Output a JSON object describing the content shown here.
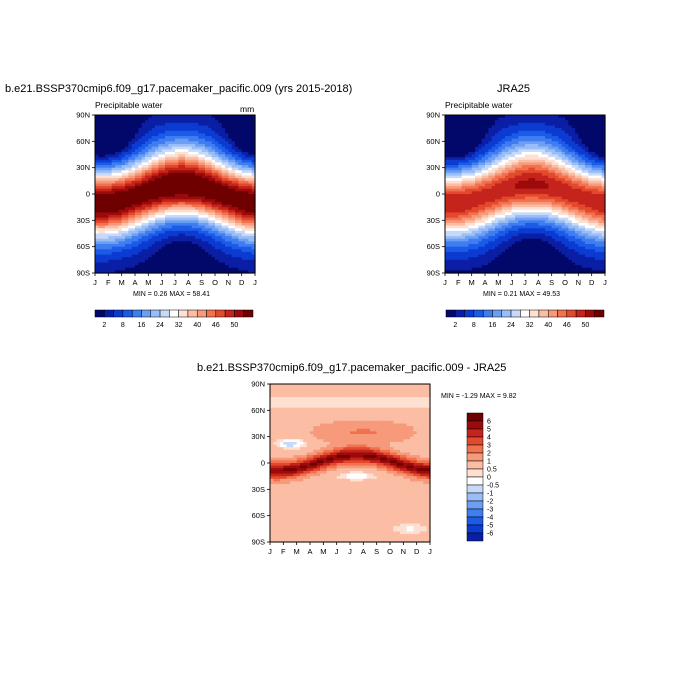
{
  "chart_data": [
    {
      "type": "heatmap",
      "title": "b.e21.BSSP370cmip6.f09_g17.pacemaker_pacific.009 (yrs 2015-2018)",
      "subtitle_left": "Precipitable water",
      "units": "mm",
      "x_ticks": [
        "J",
        "F",
        "M",
        "A",
        "M",
        "J",
        "J",
        "A",
        "S",
        "O",
        "N",
        "D",
        "J"
      ],
      "y_ticks": [
        "90N",
        "60N",
        "30N",
        "0",
        "30S",
        "60S",
        "90S"
      ],
      "min_max_text": "MIN =   0.26 MAX =  58.41",
      "colorbar_ticks": [
        "2",
        "8",
        "16",
        "24",
        "32",
        "40",
        "46",
        "50"
      ],
      "peak_value": 58,
      "colors": [
        "#02086a",
        "#0a1fa5",
        "#0b3bd1",
        "#1b5be8",
        "#3f7df0",
        "#6c9ff3",
        "#99bdf6",
        "#c6d9f8",
        "#ffffff",
        "#fde0d2",
        "#fbbda4",
        "#f79a7b",
        "#f2714f",
        "#e34a2d",
        "#c4241c",
        "#9d0a0b",
        "#6f0000"
      ],
      "rel_levels": [
        0.04,
        0.08,
        0.14,
        0.2,
        0.27,
        0.33,
        0.4,
        0.47,
        0.53,
        0.6,
        0.66,
        0.72,
        0.78,
        0.84,
        0.9,
        0.96
      ]
    },
    {
      "type": "heatmap",
      "title": "JRA25",
      "subtitle_left": "Precipitable water",
      "x_ticks": [
        "J",
        "F",
        "M",
        "A",
        "M",
        "J",
        "J",
        "A",
        "S",
        "O",
        "N",
        "D",
        "J"
      ],
      "y_ticks": [
        "90N",
        "60N",
        "30N",
        "0",
        "30S",
        "60S",
        "90S"
      ],
      "min_max_text": "MIN =   0.21 MAX =  49.53",
      "colorbar_ticks": [
        "2",
        "8",
        "16",
        "24",
        "32",
        "40",
        "46",
        "50"
      ],
      "peak_value": 49.5,
      "colors": [
        "#02086a",
        "#0a1fa5",
        "#0b3bd1",
        "#1b5be8",
        "#3f7df0",
        "#6c9ff3",
        "#99bdf6",
        "#c6d9f8",
        "#ffffff",
        "#fde0d2",
        "#fbbda4",
        "#f79a7b",
        "#f2714f",
        "#e34a2d",
        "#c4241c",
        "#9d0a0b",
        "#6f0000"
      ],
      "rel_levels": [
        0.04,
        0.08,
        0.14,
        0.2,
        0.27,
        0.33,
        0.4,
        0.47,
        0.53,
        0.6,
        0.66,
        0.72,
        0.78,
        0.84,
        0.9,
        0.96
      ]
    },
    {
      "type": "heatmap",
      "title": "b.e21.BSSP370cmip6.f09_g17.pacemaker_pacific.009 - JRA25",
      "x_ticks": [
        "J",
        "F",
        "M",
        "A",
        "M",
        "J",
        "J",
        "A",
        "S",
        "O",
        "N",
        "D",
        "J"
      ],
      "y_ticks": [
        "90N",
        "60N",
        "30N",
        "0",
        "30S",
        "60S",
        "90S"
      ],
      "min_max_text": "MIN =  -1.29 MAX =   9.82",
      "colorbar_ticks": [
        "6",
        "5",
        "4",
        "3",
        "2",
        "1",
        "0.5",
        "0",
        "-0.5",
        "-1",
        "-2",
        "-3",
        "-4",
        "-5",
        "-6"
      ],
      "colors": [
        "#6f0000",
        "#9d0a0b",
        "#c4241c",
        "#e34a2d",
        "#f2714f",
        "#f79a7b",
        "#fbbda4",
        "#fde0d2",
        "#ffffff",
        "#c6d9f8",
        "#99bdf6",
        "#6c9ff3",
        "#3f7df0",
        "#1b5be8",
        "#0b3bd1",
        "#0a1fa5",
        "#02086a"
      ]
    }
  ]
}
